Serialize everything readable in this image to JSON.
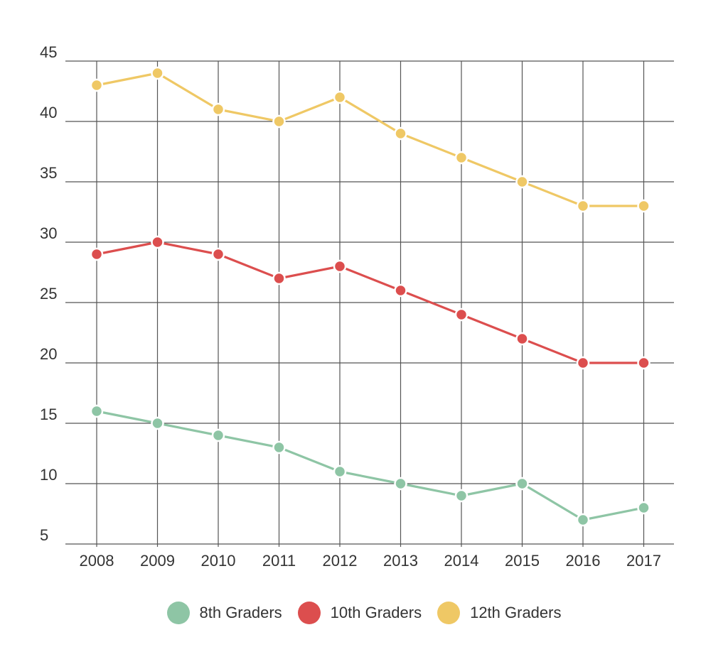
{
  "chart_data": {
    "type": "line",
    "title": "",
    "xlabel": "",
    "ylabel": "",
    "categories": [
      "2008",
      "2009",
      "2010",
      "2011",
      "2012",
      "2013",
      "2014",
      "2015",
      "2016",
      "2017"
    ],
    "y_ticks": [
      5,
      10,
      15,
      20,
      25,
      30,
      35,
      40,
      45
    ],
    "ylim": [
      5,
      45
    ],
    "grid": true,
    "legend_position": "bottom",
    "series": [
      {
        "name": "8th Graders",
        "color": "#8ec5a5",
        "values": [
          16,
          15,
          14,
          13,
          11,
          10,
          9,
          10,
          7,
          8
        ]
      },
      {
        "name": "10th Graders",
        "color": "#dc4e4e",
        "values": [
          29,
          30,
          29,
          27,
          28,
          26,
          24,
          22,
          20,
          20
        ]
      },
      {
        "name": "12th Graders",
        "color": "#efc865",
        "values": [
          43,
          44,
          41,
          40,
          42,
          39,
          37,
          35,
          33,
          33
        ]
      }
    ]
  }
}
